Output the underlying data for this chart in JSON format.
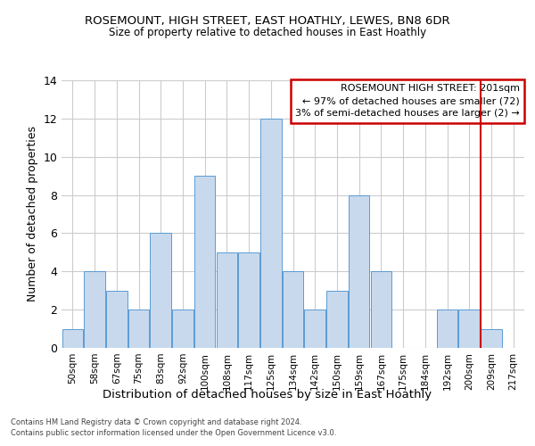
{
  "title_line1": "ROSEMOUNT, HIGH STREET, EAST HOATHLY, LEWES, BN8 6DR",
  "title_line2": "Size of property relative to detached houses in East Hoathly",
  "xlabel": "Distribution of detached houses by size in East Hoathly",
  "ylabel": "Number of detached properties",
  "categories": [
    "50sqm",
    "58sqm",
    "67sqm",
    "75sqm",
    "83sqm",
    "92sqm",
    "100sqm",
    "108sqm",
    "117sqm",
    "125sqm",
    "134sqm",
    "142sqm",
    "150sqm",
    "159sqm",
    "167sqm",
    "175sqm",
    "184sqm",
    "192sqm",
    "200sqm",
    "209sqm",
    "217sqm"
  ],
  "values": [
    1,
    4,
    3,
    2,
    6,
    2,
    9,
    5,
    5,
    12,
    4,
    2,
    3,
    8,
    4,
    0,
    0,
    2,
    2,
    1,
    0
  ],
  "bar_color": "#c8d9ed",
  "bar_edge_color": "#5b9bd5",
  "ylim": [
    0,
    14
  ],
  "yticks": [
    0,
    2,
    4,
    6,
    8,
    10,
    12,
    14
  ],
  "property_line_x": 18.5,
  "annotation_title": "ROSEMOUNT HIGH STREET: 201sqm",
  "annotation_line1": "← 97% of detached houses are smaller (72)",
  "annotation_line2": "3% of semi-detached houses are larger (2) →",
  "footer_line1": "Contains HM Land Registry data © Crown copyright and database right 2024.",
  "footer_line2": "Contains public sector information licensed under the Open Government Licence v3.0.",
  "background_color": "#ffffff",
  "grid_color": "#cccccc"
}
